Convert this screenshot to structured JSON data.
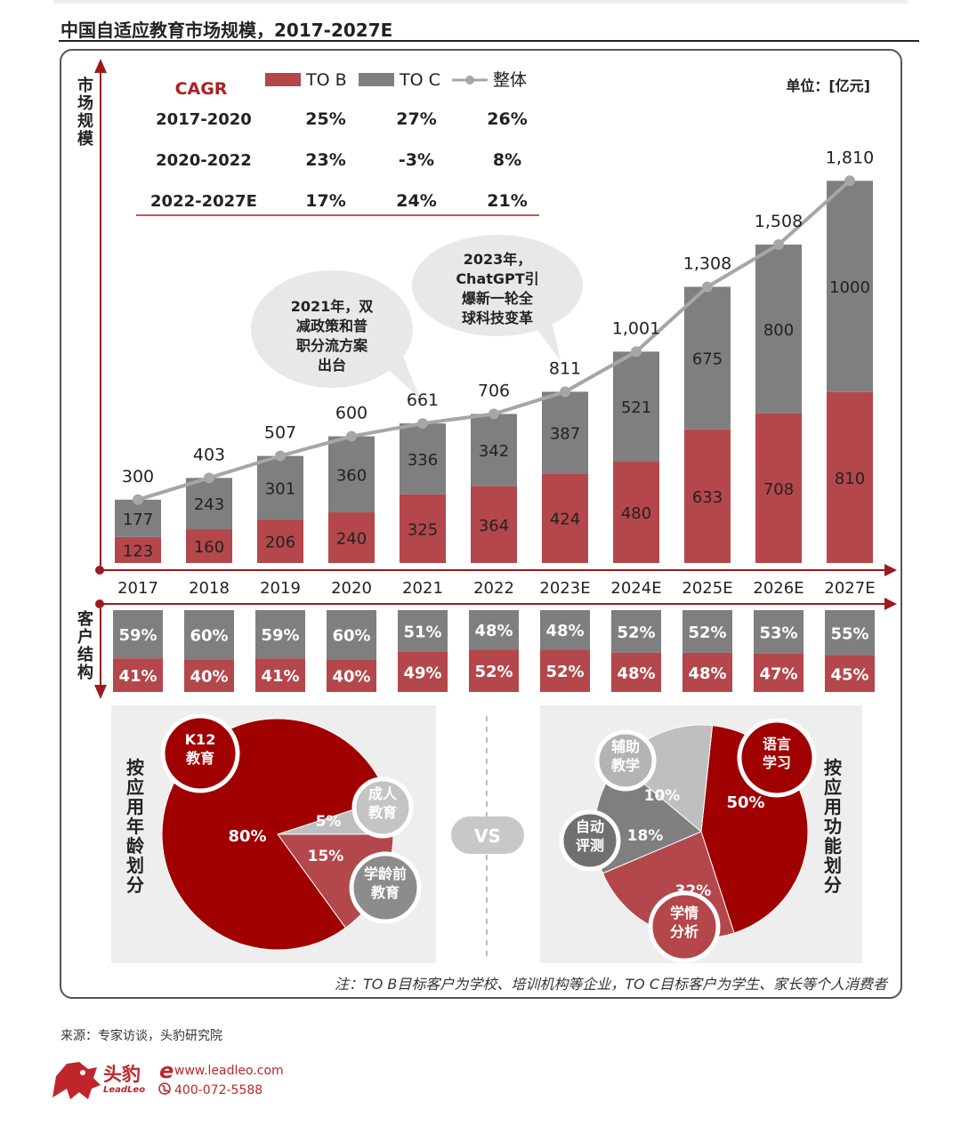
{
  "title": "中国自适应教育市场规模，2017-2027E",
  "unit_label": "单位：[亿元]",
  "y_axis_label": "市场规模",
  "structure_label": "客户结构",
  "note": "注：TO B目标客户为学校、培训机构等企业，TO C目标客户为学生、家长等个人消费者",
  "source": "来源：专家访谈，头豹研究院",
  "brand": {
    "name": "头豹",
    "latin": "LeadLeo",
    "site": "www.leadleo.com",
    "phone": "400-072-5588"
  },
  "colors": {
    "tob": "#b4474b",
    "toc": "#7f7f7f",
    "total": "#a6a6a6",
    "axis": "#9c1a1f",
    "pie_dark": "#a00000",
    "pie_mid": "#b4474b",
    "pie_gray": "#7f7f7f",
    "pie_light": "#bfbfbf"
  },
  "cagr": {
    "title": "CAGR",
    "rows": [
      {
        "period": "2017-2020",
        "tob": "25%",
        "toc": "27%",
        "total": "26%"
      },
      {
        "period": "2020-2022",
        "tob": "23%",
        "toc": "-3%",
        "total": "8%"
      },
      {
        "period": "2022-2027E",
        "tob": "17%",
        "toc": "24%",
        "total": "21%"
      }
    ]
  },
  "callouts": [
    {
      "text": [
        "2021年，双",
        "减政策和普",
        "职分流方案",
        "出台"
      ]
    },
    {
      "text": [
        "2023年，",
        "ChatGPT引",
        "爆新一轮全",
        "球科技变革"
      ]
    }
  ],
  "chart_data": [
    {
      "type": "bar",
      "stacked": true,
      "categories": [
        "2017",
        "2018",
        "2019",
        "2020",
        "2021",
        "2022",
        "2023E",
        "2024E",
        "2025E",
        "2026E",
        "2027E"
      ],
      "series": [
        {
          "name": "TO B",
          "values": [
            123,
            160,
            206,
            240,
            325,
            364,
            424,
            480,
            633,
            708,
            810
          ]
        },
        {
          "name": "TO C",
          "values": [
            177,
            243,
            301,
            360,
            336,
            342,
            387,
            521,
            675,
            800,
            1000
          ]
        },
        {
          "name": "整体",
          "type": "line",
          "values": [
            300,
            403,
            507,
            600,
            661,
            706,
            811,
            1001,
            1308,
            1508,
            1810
          ],
          "labels": [
            "300",
            "403",
            "507",
            "600",
            "661",
            "706",
            "811",
            "1,001",
            "1,308",
            "1,508",
            "1,810"
          ]
        }
      ],
      "legend": "top"
    },
    {
      "type": "bar",
      "stacked": true,
      "percent": true,
      "categories": [
        "2017",
        "2018",
        "2019",
        "2020",
        "2021",
        "2022",
        "2023E",
        "2024E",
        "2025E",
        "2026E",
        "2027E"
      ],
      "series": [
        {
          "name": "TO B",
          "values": [
            41,
            40,
            41,
            40,
            49,
            52,
            52,
            48,
            48,
            47,
            45
          ]
        },
        {
          "name": "TO C",
          "values": [
            59,
            60,
            59,
            60,
            51,
            48,
            48,
            52,
            52,
            53,
            55
          ]
        }
      ]
    },
    {
      "type": "pie",
      "title": "按应用年龄划分",
      "slices": [
        {
          "label": "K12教育",
          "value": 80
        },
        {
          "label": "成人教育",
          "value": 5
        },
        {
          "label": "学龄前教育",
          "value": 15
        }
      ],
      "bubbles": [
        [
          "K12",
          "教育"
        ],
        [
          "成人",
          "教育"
        ],
        [
          "学龄前",
          "教育"
        ]
      ]
    },
    {
      "type": "pie",
      "title": "按应用功能划分",
      "slices": [
        {
          "label": "语言学习",
          "value": 50
        },
        {
          "label": "学情分析",
          "value": 32
        },
        {
          "label": "自动评测",
          "value": 18
        },
        {
          "label": "辅助教学",
          "value": 10
        }
      ],
      "bubbles": [
        [
          "语言",
          "学习"
        ],
        [
          "学情",
          "分析"
        ],
        [
          "自动",
          "评测"
        ],
        [
          "辅助",
          "教学"
        ]
      ]
    }
  ],
  "vs_label": "VS"
}
